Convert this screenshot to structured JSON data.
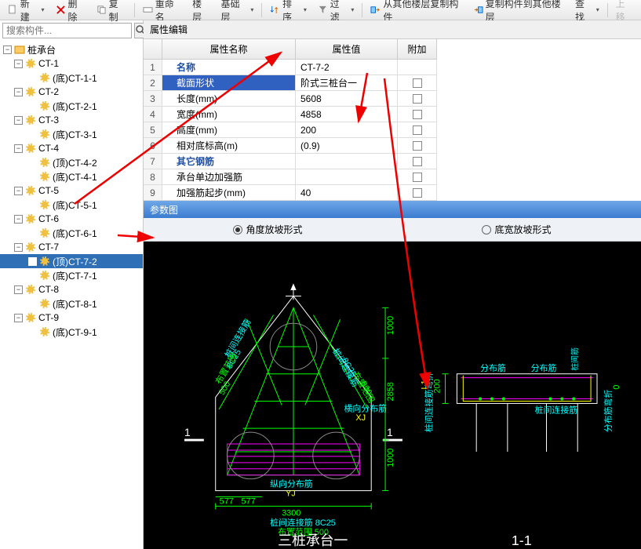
{
  "toolbar": {
    "new": "新建",
    "delete": "删除",
    "copy": "复制",
    "rename": "重命名",
    "floor": "楼层",
    "base_layer": "基础层",
    "sort": "排序",
    "filter": "过滤",
    "copy_from": "从其他楼层复制构件",
    "copy_to": "复制构件到其他楼层",
    "find": "查找",
    "upload": "上移"
  },
  "search": {
    "placeholder": "搜索构件..."
  },
  "tree": {
    "root": "桩承台",
    "items": [
      {
        "l": "CT-1",
        "c": [
          {
            "l": "(底)CT-1-1"
          }
        ]
      },
      {
        "l": "CT-2",
        "c": [
          {
            "l": "(底)CT-2-1"
          }
        ]
      },
      {
        "l": "CT-3",
        "c": [
          {
            "l": "(底)CT-3-1"
          }
        ]
      },
      {
        "l": "CT-4",
        "c": [
          {
            "l": "(顶)CT-4-2"
          },
          {
            "l": "(底)CT-4-1"
          }
        ]
      },
      {
        "l": "CT-5",
        "c": [
          {
            "l": "(底)CT-5-1"
          }
        ]
      },
      {
        "l": "CT-6",
        "c": [
          {
            "l": "(底)CT-6-1"
          }
        ]
      },
      {
        "l": "CT-7",
        "c": [
          {
            "l": "(顶)CT-7-2",
            "sel": true
          },
          {
            "l": "(底)CT-7-1"
          }
        ]
      },
      {
        "l": "CT-8",
        "c": [
          {
            "l": "(底)CT-8-1"
          }
        ]
      },
      {
        "l": "CT-9",
        "c": [
          {
            "l": "(底)CT-9-1"
          }
        ]
      }
    ]
  },
  "props": {
    "title": "属性编辑",
    "col_name": "属性名称",
    "col_val": "属性值",
    "col_att": "附加",
    "rows": [
      {
        "n": "1",
        "name": "名称",
        "val": "CT-7-2",
        "blue": true
      },
      {
        "n": "2",
        "name": "截面形状",
        "val": "阶式三桩台一",
        "hl": true
      },
      {
        "n": "3",
        "name": "长度(mm)",
        "val": "5608"
      },
      {
        "n": "4",
        "name": "宽度(mm)",
        "val": "4858"
      },
      {
        "n": "5",
        "name": "高度(mm)",
        "val": "200"
      },
      {
        "n": "6",
        "name": "相对底标高(m)",
        "val": "(0.9)"
      },
      {
        "n": "7",
        "name": "其它钢筋",
        "val": "",
        "blue": true
      },
      {
        "n": "8",
        "name": "承台单边加强筋",
        "val": ""
      },
      {
        "n": "9",
        "name": "加强筋起步(mm)",
        "val": "40"
      }
    ]
  },
  "param": {
    "title": "参数图",
    "opt1": "角度放坡形式",
    "opt2": "底宽放坡形式"
  },
  "drawing": {
    "plan_title": "三桩承台一",
    "section_title": "1-1",
    "section_mark": "1",
    "dim_1000a": "1000",
    "dim_2858": "2858",
    "dim_1000b": "1000",
    "dim_3300": "3300",
    "dim_577a": "577",
    "dim_577b": "577",
    "dim_200": "200",
    "lbl_pile_conn": "桩间连接筋",
    "lbl_8c25": "8C25",
    "lbl_range": "布置范围",
    "lbl_500": "500",
    "lbl_horiz": "横向分布筋",
    "lbl_xj": "XJ",
    "lbl_vert": "纵向分布筋",
    "lbl_yj": "YJ",
    "lbl_dist": "分布筋",
    "lbl_pile_conn2": "桩间连接筋",
    "lbl_vbend": "桩间连接筋弯折",
    "lbl_dbend": "分布筋弯折",
    "lbl_pile_conn3": "桩间连接筋 8C25",
    "lbl_range2": "布置范围 500",
    "dim_0": "0"
  },
  "colors": {
    "green": "#00ff00",
    "magenta": "#ff00ff",
    "cyan": "#00ffff",
    "yellow": "#ffff00",
    "white": "#ffffff",
    "red": "#e00000"
  }
}
